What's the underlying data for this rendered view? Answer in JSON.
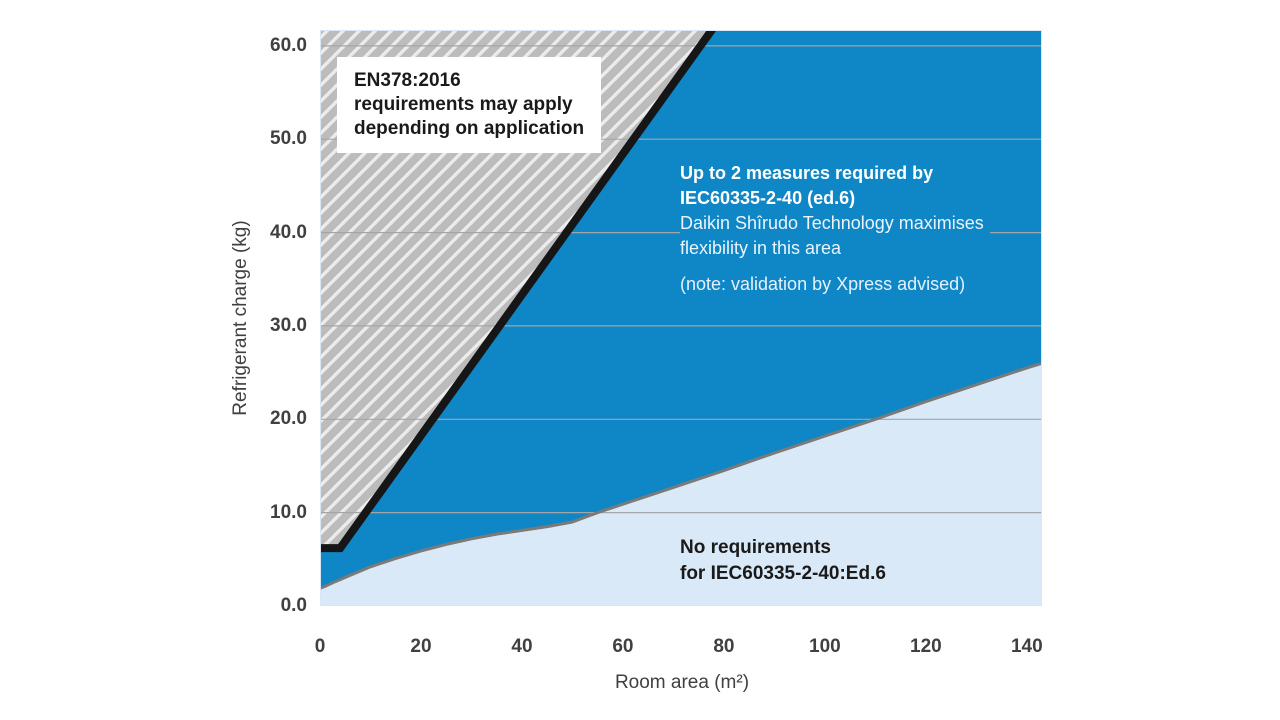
{
  "chart_data": {
    "type": "area",
    "title": "",
    "xlabel": "Room area (m²)",
    "ylabel": "Refrigerant charge (kg)",
    "xlim": [
      0,
      143
    ],
    "ylim": [
      0,
      61.7
    ],
    "x_ticks": [
      0,
      20,
      40,
      60,
      80,
      100,
      120,
      140
    ],
    "x_tick_labels": [
      "0",
      "20",
      "40",
      "60",
      "80",
      "100",
      "120",
      "140"
    ],
    "y_ticks": [
      0,
      10,
      20,
      30,
      40,
      50,
      60
    ],
    "y_tick_labels": [
      "0.0",
      "10.0",
      "20.0",
      "30.0",
      "40.0",
      "50.0",
      "60.0"
    ],
    "grid": "horizontal-only",
    "legend": "none",
    "colors": {
      "blue_region": "#0f86c6",
      "light_region": "#d9e9f7",
      "hatch_bg": "#ececec",
      "hatch_stripe": "#bcbcbc",
      "black_line": "#161616",
      "grey_curve": "#7a7a78",
      "gridline": "#a2a6aa",
      "plot_border": "#d8e7f5",
      "axis_text": "#404040"
    },
    "series": [
      {
        "name": "en378-upper-boundary-line",
        "color": "#161616",
        "width": 8,
        "points": [
          [
            0,
            6.2
          ],
          [
            4,
            6.2
          ],
          [
            78,
            62
          ]
        ]
      },
      {
        "name": "no-requirement-boundary-curve",
        "color": "#7a7a78",
        "width": 3,
        "points": [
          [
            0,
            1.9
          ],
          [
            1,
            2.1
          ],
          [
            3,
            2.6
          ],
          [
            6,
            3.3
          ],
          [
            10,
            4.2
          ],
          [
            15,
            5.1
          ],
          [
            20,
            5.9
          ],
          [
            25,
            6.6
          ],
          [
            30,
            7.2
          ],
          [
            35,
            7.7
          ],
          [
            40,
            8.1
          ],
          [
            45,
            8.5
          ],
          [
            50,
            9.0
          ],
          [
            52,
            9.4
          ],
          [
            55,
            10.0
          ],
          [
            60,
            10.9
          ],
          [
            70,
            12.7
          ],
          [
            80,
            14.5
          ],
          [
            90,
            16.4
          ],
          [
            100,
            18.2
          ],
          [
            110,
            20.0
          ],
          [
            120,
            21.9
          ],
          [
            130,
            23.7
          ],
          [
            140,
            25.5
          ],
          [
            143,
            26.0
          ]
        ]
      }
    ],
    "regions": [
      {
        "name": "en378-hatched-region",
        "fill": "hatch-pattern"
      },
      {
        "name": "two-measures-blue-region",
        "fill": "#0f86c6"
      },
      {
        "name": "no-requirements-light-region",
        "fill": "#d9e9f7"
      }
    ],
    "annotations": {
      "hatched": {
        "line1": "EN378:2016",
        "line2": "requirements may apply",
        "line3": "depending on application"
      },
      "blue": {
        "bold1": "Up to 2 measures required by",
        "bold2": "IEC60335-2-40 (ed.6)",
        "reg1": "Daikin Shîrudo Technology maximises",
        "reg2": "flexibility in this area",
        "note": "(note: validation by Xpress advised)"
      },
      "light": {
        "line1": "No requirements",
        "line2": "for IEC60335-2-40:Ed.6"
      }
    }
  }
}
